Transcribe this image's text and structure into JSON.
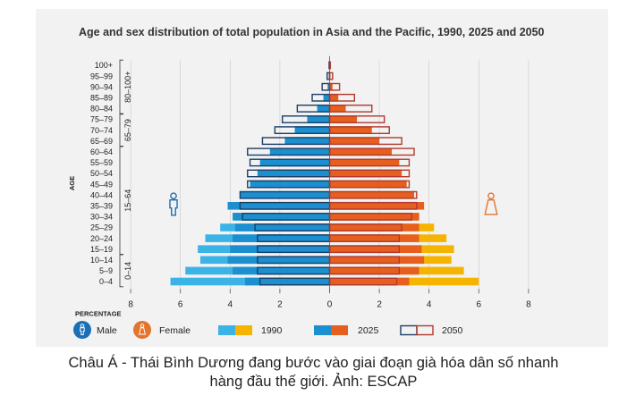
{
  "title": "Age and sex distribution of total population in Asia and the Pacific, 1990, 2025 and 2050",
  "caption_lines": [
    "Châu Á - Thái Bình Dương đang bước vào giai đoạn già hóa dân số nhanh",
    "hàng đầu thế giới. Ảnh: ESCAP"
  ],
  "colors": {
    "male_1990": "#3bb3e6",
    "female_1990": "#f5b400",
    "male_2025": "#1b8fd0",
    "female_2025": "#e65f1e",
    "male_2050_outline": "#1b3f66",
    "female_2050_outline": "#b03a2e",
    "male_icon": "#1b6fb4",
    "female_icon": "#e2742c"
  },
  "chart_data": {
    "type": "bar",
    "subtype": "population-pyramid",
    "title": "Age and sex distribution of total population in Asia and the Pacific, 1990, 2025 and 2050",
    "ylabel": "AGE",
    "xlabel": "PERCENTAGE",
    "xlim": [
      -8,
      8
    ],
    "x_ticks": [
      -8,
      -6,
      -4,
      -2,
      0,
      2,
      4,
      6,
      8
    ],
    "x_tick_labels": [
      "8",
      "6",
      "4",
      "2",
      "0",
      "2",
      "4",
      "6",
      "8"
    ],
    "categories": [
      "0–4",
      "5–9",
      "10–14",
      "15–19",
      "20–24",
      "25–29",
      "30–34",
      "35–39",
      "40–44",
      "45–49",
      "50–54",
      "55–59",
      "60–64",
      "65–69",
      "70–74",
      "75–79",
      "80–84",
      "85–89",
      "90–94",
      "95–99",
      "100+"
    ],
    "age_groups": [
      {
        "label": "0–14",
        "from": 0,
        "to": 2
      },
      {
        "label": "15–64",
        "from": 3,
        "to": 12
      },
      {
        "label": "65–79",
        "from": 13,
        "to": 15
      },
      {
        "label": "80–100+",
        "from": 16,
        "to": 20
      }
    ],
    "legend": {
      "male": "Male",
      "female": "Female",
      "y1990": "1990",
      "y2025": "2025",
      "y2050": "2050"
    },
    "series": [
      {
        "name": "1990",
        "sex": "male",
        "values": [
          6.4,
          5.8,
          5.2,
          5.3,
          5.0,
          4.4,
          3.8,
          3.3,
          2.6,
          2.3,
          2.1,
          1.8,
          1.5,
          1.2,
          0.8,
          0.5,
          0.3,
          0.1,
          0.04,
          0.01,
          0.0
        ]
      },
      {
        "name": "1990",
        "sex": "female",
        "values": [
          6.0,
          5.4,
          4.9,
          5.0,
          4.7,
          4.2,
          3.6,
          3.1,
          2.5,
          2.2,
          2.0,
          1.8,
          1.5,
          1.3,
          0.9,
          0.6,
          0.4,
          0.15,
          0.05,
          0.01,
          0.0
        ]
      },
      {
        "name": "2025",
        "sex": "male",
        "values": [
          3.4,
          3.9,
          4.1,
          4.0,
          3.9,
          3.8,
          3.9,
          4.1,
          3.6,
          3.2,
          2.9,
          2.8,
          2.4,
          1.8,
          1.4,
          0.9,
          0.5,
          0.25,
          0.08,
          0.02,
          0.0
        ]
      },
      {
        "name": "2025",
        "sex": "female",
        "values": [
          3.2,
          3.6,
          3.8,
          3.7,
          3.6,
          3.6,
          3.6,
          3.8,
          3.4,
          3.1,
          2.9,
          2.8,
          2.5,
          2.0,
          1.7,
          1.1,
          0.65,
          0.35,
          0.12,
          0.03,
          0.0
        ]
      },
      {
        "name": "2050",
        "sex": "male",
        "values": [
          2.8,
          2.9,
          2.9,
          2.9,
          2.9,
          3.0,
          3.5,
          3.6,
          3.6,
          3.3,
          3.3,
          3.2,
          3.3,
          2.7,
          2.2,
          1.9,
          1.3,
          0.7,
          0.3,
          0.1,
          0.02
        ]
      },
      {
        "name": "2050",
        "sex": "female",
        "values": [
          2.7,
          2.8,
          2.8,
          2.8,
          2.8,
          2.9,
          3.3,
          3.5,
          3.5,
          3.2,
          3.2,
          3.2,
          3.4,
          2.9,
          2.4,
          2.2,
          1.7,
          1.0,
          0.4,
          0.12,
          0.03
        ]
      }
    ]
  }
}
